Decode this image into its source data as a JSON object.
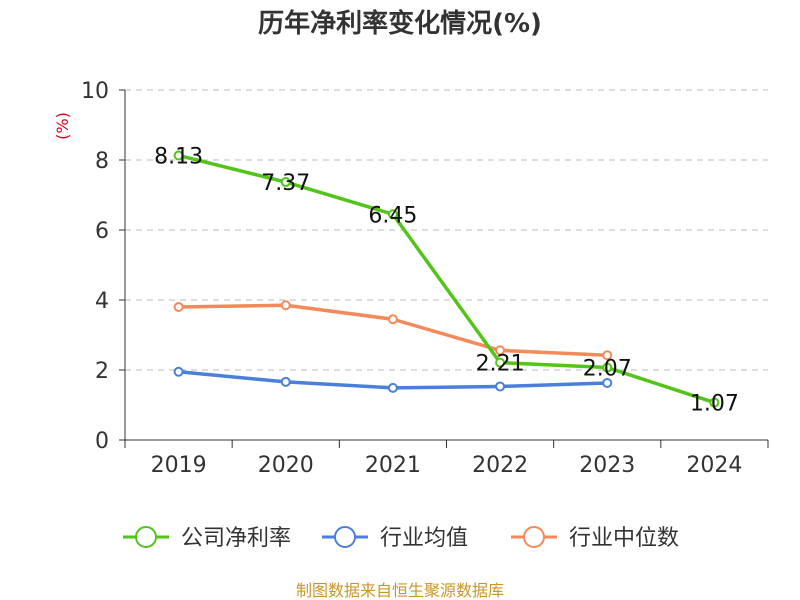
{
  "chart_data": {
    "type": "line",
    "title": "历年净利率变化情况(%)",
    "ylabel": "(%)",
    "xlabel": "",
    "categories": [
      "2019",
      "2020",
      "2021",
      "2022",
      "2023",
      "2024"
    ],
    "ylim": [
      0,
      10
    ],
    "yticks": [
      0,
      2,
      4,
      6,
      8,
      10
    ],
    "grid": true,
    "legend_position": "bottom",
    "series": [
      {
        "name": "公司净利率",
        "color": "#52c41a",
        "values": [
          8.13,
          7.37,
          6.45,
          2.21,
          2.07,
          1.07
        ],
        "labels": [
          "8.13",
          "7.37",
          "6.45",
          "2.21",
          "2.07",
          "1.07"
        ]
      },
      {
        "name": "行业均值",
        "color": "#4a7fdb",
        "values": [
          1.95,
          1.66,
          1.49,
          1.53,
          1.63,
          null
        ]
      },
      {
        "name": "行业中位数",
        "color": "#f5895a",
        "values": [
          3.8,
          3.85,
          3.45,
          2.56,
          2.42,
          null
        ]
      }
    ],
    "source": "制图数据来自恒生聚源数据库"
  }
}
